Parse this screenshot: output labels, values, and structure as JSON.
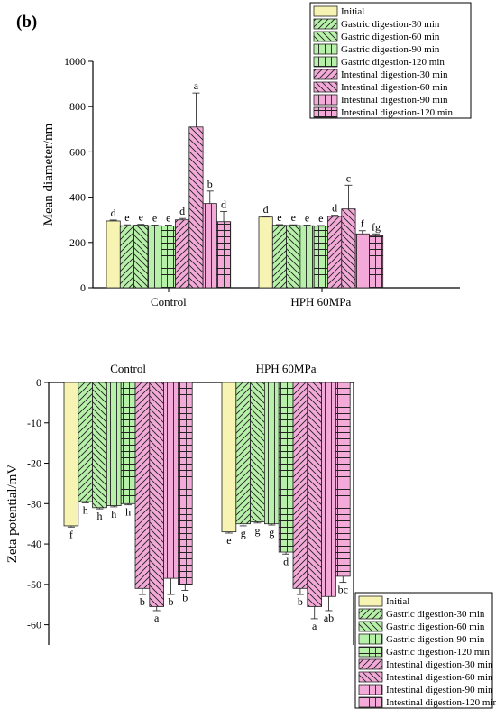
{
  "panel_label": "(b)",
  "legend": [
    {
      "name": "Initial",
      "fill": "#f6f3b3",
      "pattern": "solid"
    },
    {
      "name": "Gastric digestion-30 min",
      "fill": "#b7f0a8",
      "pattern": "fdiag"
    },
    {
      "name": "Gastric digestion-60 min",
      "fill": "#b7f0a8",
      "pattern": "bdiag"
    },
    {
      "name": "Gastric digestion-90 min",
      "fill": "#b7f0a8",
      "pattern": "vert"
    },
    {
      "name": "Gastric digestion-120 min",
      "fill": "#b7f0a8",
      "pattern": "grid"
    },
    {
      "name": "Intestinal digestion-30 min",
      "fill": "#f3aad8",
      "pattern": "fdiag"
    },
    {
      "name": "Intestinal digestion-60 min",
      "fill": "#f3aad8",
      "pattern": "bdiag"
    },
    {
      "name": "Intestinal digestion-90 min",
      "fill": "#f3aad8",
      "pattern": "vert"
    },
    {
      "name": "Intestinal digestion-120 min",
      "fill": "#f3aad8",
      "pattern": "grid"
    }
  ],
  "chart_data": [
    {
      "type": "bar",
      "categories": [
        "Control",
        "HPH 60MPa"
      ],
      "ylabel": "Mean diameter/nm",
      "ylim": [
        0,
        1000
      ],
      "yticks": [
        0,
        200,
        400,
        600,
        800,
        1000
      ],
      "legend_position": "top-right",
      "series": [
        {
          "name": "Initial",
          "values": [
            295,
            312
          ],
          "errors": [
            4,
            3
          ],
          "letters": [
            "d",
            "d"
          ]
        },
        {
          "name": "Gastric digestion-30 min",
          "values": [
            274,
            276
          ],
          "errors": [
            4,
            3
          ],
          "letters": [
            "e",
            "e"
          ]
        },
        {
          "name": "Gastric digestion-60 min",
          "values": [
            277,
            275
          ],
          "errors": [
            3,
            3
          ],
          "letters": [
            "e",
            "e"
          ]
        },
        {
          "name": "Gastric digestion-90 min",
          "values": [
            274,
            274
          ],
          "errors": [
            3,
            3
          ],
          "letters": [
            "e",
            "e"
          ]
        },
        {
          "name": "Gastric digestion-120 min",
          "values": [
            273,
            272
          ],
          "errors": [
            4,
            3
          ],
          "letters": [
            "e",
            "e"
          ]
        },
        {
          "name": "Intestinal digestion-30 min",
          "values": [
            300,
            315
          ],
          "errors": [
            6,
            5
          ],
          "letters": [
            "d",
            "d"
          ]
        },
        {
          "name": "Intestinal digestion-60 min",
          "values": [
            710,
            348
          ],
          "errors": [
            150,
            105
          ],
          "letters": [
            "a",
            "c"
          ]
        },
        {
          "name": "Intestinal digestion-90 min",
          "values": [
            372,
            238
          ],
          "errors": [
            55,
            14
          ],
          "letters": [
            "b",
            "f"
          ]
        },
        {
          "name": "Intestinal digestion-120 min",
          "values": [
            292,
            230
          ],
          "errors": [
            45,
            8
          ],
          "letters": [
            "d",
            "fg"
          ]
        }
      ]
    },
    {
      "type": "bar",
      "categories": [
        "Control",
        "HPH 60MPa"
      ],
      "ylabel": "Zeta potential/mV",
      "ylim": [
        -65,
        0
      ],
      "yticks": [
        0,
        -10,
        -20,
        -30,
        -40,
        -50,
        -60
      ],
      "legend_position": "bottom-right",
      "series": [
        {
          "name": "Initial",
          "values": [
            -35.5,
            -37
          ],
          "errors": [
            0.3,
            0.3
          ],
          "letters": [
            "f",
            "e"
          ]
        },
        {
          "name": "Gastric digestion-30 min",
          "values": [
            -29.5,
            -35
          ],
          "errors": [
            0.3,
            0.5
          ],
          "letters": [
            "h",
            "g"
          ]
        },
        {
          "name": "Gastric digestion-60 min",
          "values": [
            -31,
            -34.5
          ],
          "errors": [
            0.3,
            0.3
          ],
          "letters": [
            "h",
            "g"
          ]
        },
        {
          "name": "Gastric digestion-90 min",
          "values": [
            -30.5,
            -35
          ],
          "errors": [
            0.3,
            0.3
          ],
          "letters": [
            "h",
            "g"
          ]
        },
        {
          "name": "Gastric digestion-120 min",
          "values": [
            -30,
            -42
          ],
          "errors": [
            0.3,
            0.5
          ],
          "letters": [
            "h",
            "d"
          ]
        },
        {
          "name": "Intestinal digestion-30 min",
          "values": [
            -51,
            -51
          ],
          "errors": [
            1.5,
            1.5
          ],
          "letters": [
            "b",
            "b"
          ]
        },
        {
          "name": "Intestinal digestion-60 min",
          "values": [
            -55.5,
            -55.5
          ],
          "errors": [
            1,
            3
          ],
          "letters": [
            "a",
            "a"
          ]
        },
        {
          "name": "Intestinal digestion-90 min",
          "values": [
            -48.5,
            -53
          ],
          "errors": [
            4,
            3.5
          ],
          "letters": [
            "b",
            "ab"
          ]
        },
        {
          "name": "Intestinal digestion-120 min",
          "values": [
            -50,
            -48
          ],
          "errors": [
            1.5,
            1.5
          ],
          "letters": [
            "b",
            "bc"
          ]
        }
      ]
    }
  ]
}
